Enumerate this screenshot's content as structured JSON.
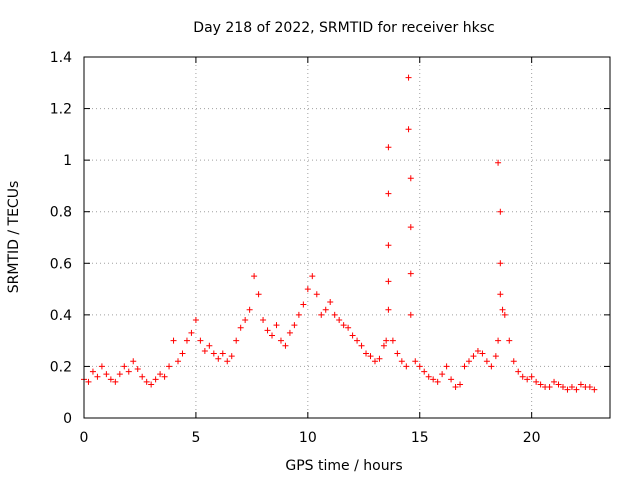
{
  "chart_data": {
    "type": "scatter",
    "title": "Day 218 of 2022, SRMTID for receiver hksc",
    "xlabel": "GPS time / hours",
    "ylabel": "SRMTID / TECUs",
    "xlim": [
      0,
      23.5
    ],
    "ylim": [
      0,
      1.4
    ],
    "xticks": [
      0,
      5,
      10,
      15,
      20
    ],
    "xtick_labels": [
      "0",
      "5",
      "10",
      "15",
      "20"
    ],
    "yticks": [
      0,
      0.2,
      0.4,
      0.6,
      0.8,
      1.0,
      1.2,
      1.4
    ],
    "ytick_labels": [
      "0",
      "0.2",
      "0.4",
      "0.6",
      "0.8",
      "1",
      "1.2",
      "1.4"
    ],
    "grid": true,
    "marker": "+",
    "color": "#ff0000",
    "series": [
      {
        "name": "SRMTID",
        "x": [
          0.0,
          0.2,
          0.4,
          0.6,
          0.8,
          1.0,
          1.2,
          1.4,
          1.6,
          1.8,
          2.0,
          2.2,
          2.4,
          2.6,
          2.8,
          3.0,
          3.2,
          3.4,
          3.6,
          3.8,
          4.0,
          4.2,
          4.4,
          4.6,
          4.8,
          5.0,
          5.2,
          5.4,
          5.6,
          5.8,
          6.0,
          6.2,
          6.4,
          6.6,
          6.8,
          7.0,
          7.2,
          7.4,
          7.6,
          7.8,
          8.0,
          8.2,
          8.4,
          8.6,
          8.8,
          9.0,
          9.2,
          9.4,
          9.6,
          9.8,
          10.0,
          10.2,
          10.4,
          10.6,
          10.8,
          11.0,
          11.2,
          11.4,
          11.6,
          11.8,
          12.0,
          12.2,
          12.4,
          12.6,
          12.8,
          13.0,
          13.2,
          13.4,
          13.5,
          13.6,
          13.6,
          13.6,
          13.6,
          13.6,
          13.8,
          14.0,
          14.2,
          14.4,
          14.5,
          14.5,
          14.6,
          14.6,
          14.6,
          14.6,
          14.8,
          15.0,
          15.2,
          15.4,
          15.6,
          15.8,
          16.0,
          16.2,
          16.4,
          16.6,
          16.8,
          17.0,
          17.2,
          17.4,
          17.6,
          17.8,
          18.0,
          18.2,
          18.4,
          18.5,
          18.5,
          18.6,
          18.6,
          18.6,
          18.7,
          18.8,
          19.0,
          19.2,
          19.4,
          19.6,
          19.8,
          20.0,
          20.2,
          20.4,
          20.6,
          20.8,
          21.0,
          21.2,
          21.4,
          21.6,
          21.8,
          22.0,
          22.2,
          22.4,
          22.6,
          22.8
        ],
        "y": [
          0.15,
          0.14,
          0.18,
          0.16,
          0.2,
          0.17,
          0.15,
          0.14,
          0.17,
          0.2,
          0.18,
          0.22,
          0.19,
          0.16,
          0.14,
          0.13,
          0.15,
          0.17,
          0.16,
          0.2,
          0.3,
          0.22,
          0.25,
          0.3,
          0.33,
          0.38,
          0.3,
          0.26,
          0.28,
          0.25,
          0.23,
          0.25,
          0.22,
          0.24,
          0.3,
          0.35,
          0.38,
          0.42,
          0.55,
          0.48,
          0.38,
          0.34,
          0.32,
          0.36,
          0.3,
          0.28,
          0.33,
          0.36,
          0.4,
          0.44,
          0.5,
          0.55,
          0.48,
          0.4,
          0.42,
          0.45,
          0.4,
          0.38,
          0.36,
          0.35,
          0.32,
          0.3,
          0.28,
          0.25,
          0.24,
          0.22,
          0.23,
          0.28,
          0.3,
          1.05,
          0.87,
          0.67,
          0.53,
          0.42,
          0.3,
          0.25,
          0.22,
          0.2,
          1.32,
          1.12,
          0.93,
          0.74,
          0.56,
          0.4,
          0.22,
          0.2,
          0.18,
          0.16,
          0.15,
          0.14,
          0.17,
          0.2,
          0.15,
          0.12,
          0.13,
          0.2,
          0.22,
          0.24,
          0.26,
          0.25,
          0.22,
          0.2,
          0.24,
          0.3,
          0.99,
          0.8,
          0.6,
          0.48,
          0.42,
          0.4,
          0.3,
          0.22,
          0.18,
          0.16,
          0.15,
          0.16,
          0.14,
          0.13,
          0.12,
          0.12,
          0.14,
          0.13,
          0.12,
          0.11,
          0.12,
          0.11,
          0.13,
          0.12,
          0.12,
          0.11
        ]
      }
    ]
  }
}
